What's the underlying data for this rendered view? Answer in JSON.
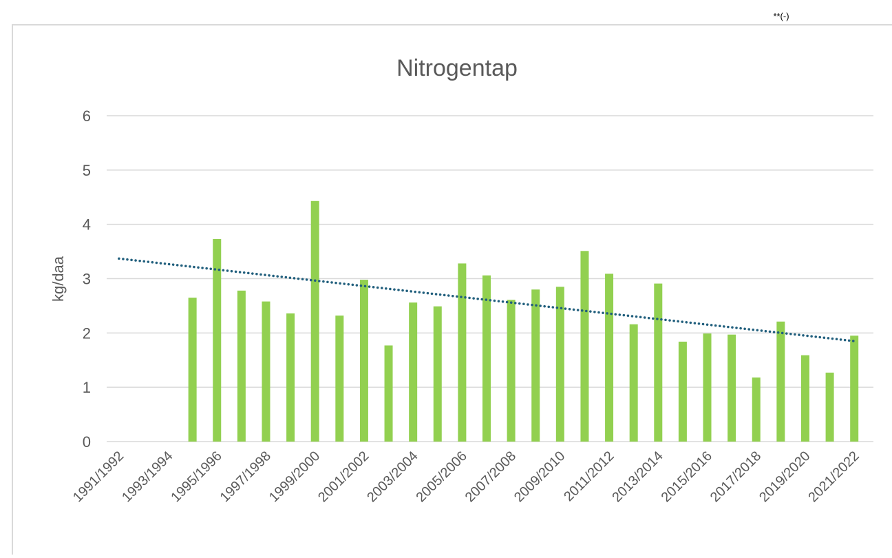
{
  "note_mark": "**(-)",
  "chart_data": {
    "type": "bar",
    "title": "Nitrogentap",
    "y_label": "kg/daa",
    "categories": [
      "1991/1992",
      null,
      "1993/1994",
      null,
      "1995/1996",
      null,
      "1997/1998",
      null,
      "1999/2000",
      null,
      "2001/2002",
      null,
      "2003/2004",
      null,
      "2005/2006",
      null,
      "2007/2008",
      null,
      "2009/2010",
      null,
      "2011/2012",
      null,
      "2013/2014",
      null,
      "2015/2016",
      null,
      "2017/2018",
      null,
      "2019/2020",
      null,
      "2021/2022"
    ],
    "values": [
      null,
      null,
      null,
      2.65,
      3.73,
      2.78,
      2.58,
      2.36,
      4.43,
      2.32,
      2.98,
      1.77,
      2.56,
      2.49,
      3.28,
      3.06,
      2.61,
      2.8,
      2.85,
      3.51,
      3.09,
      2.16,
      2.91,
      1.84,
      1.99,
      1.97,
      1.18,
      2.21,
      1.59,
      1.27,
      1.95
    ],
    "color": "#92d050",
    "trendline": {
      "values": [
        3.37,
        1.85
      ],
      "color": "#215f7d"
    },
    "ylim": [
      0,
      6
    ],
    "yticks": [
      0,
      1,
      2,
      3,
      4,
      5,
      6
    ],
    "grid": true
  }
}
